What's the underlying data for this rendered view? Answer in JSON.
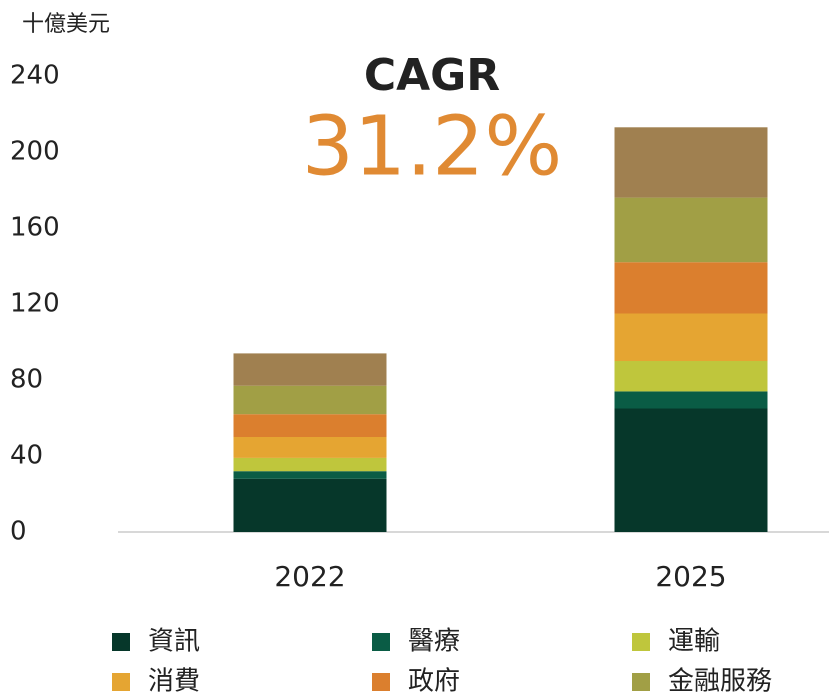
{
  "chart_data": {
    "type": "stacked_bar",
    "y_label": "十億美元",
    "annotations": [
      "CAGR",
      "31.2%"
    ],
    "categories": [
      "2022",
      "2025"
    ],
    "series": [
      {
        "name": "資訊",
        "color": "#06372a",
        "values": [
          28,
          65
        ]
      },
      {
        "name": "醫療",
        "color": "#0a5c45",
        "values": [
          4,
          9
        ]
      },
      {
        "name": "運輸",
        "color": "#bfc63c",
        "values": [
          7,
          16
        ]
      },
      {
        "name": "消費",
        "color": "#e5a532",
        "values": [
          11,
          25
        ]
      },
      {
        "name": "政府",
        "color": "#db7f2e",
        "values": [
          12,
          27
        ]
      },
      {
        "name": "金融服務",
        "color": "#a19f45",
        "values": [
          15,
          34
        ]
      },
      {
        "name": null,
        "color": "#a08050",
        "values": [
          17,
          37
        ]
      }
    ],
    "ylim": [
      0,
      240
    ],
    "yticks": [
      0,
      40,
      80,
      120,
      160,
      200,
      240
    ],
    "grid": false
  }
}
